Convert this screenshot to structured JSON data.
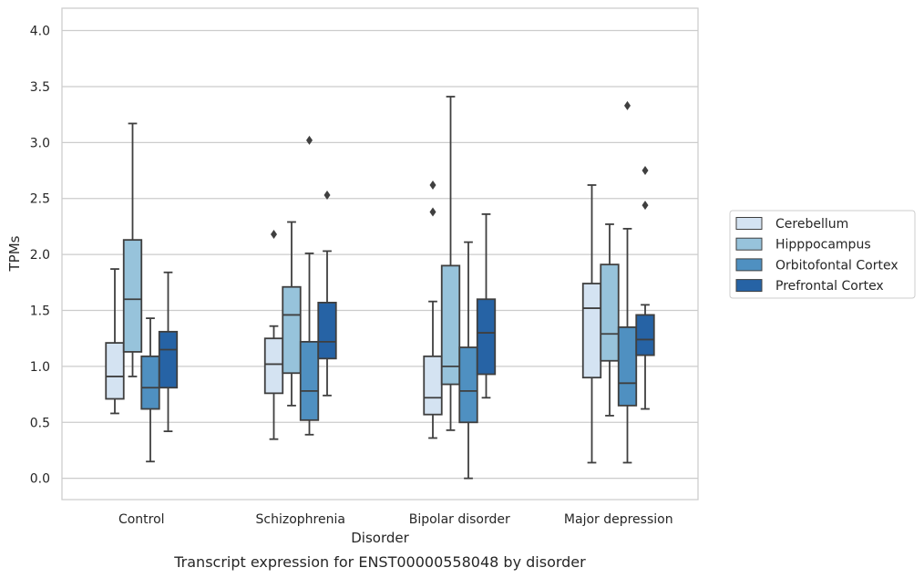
{
  "chart_data": {
    "type": "box",
    "caption": "Transcript expression for ENST00000558048 by disorder",
    "xlabel": "Disorder",
    "ylabel": "TPMs",
    "ylim": [
      -0.19,
      4.2
    ],
    "yticks": [
      "0.0",
      "0.5",
      "1.0",
      "1.5",
      "2.0",
      "2.5",
      "3.0",
      "3.5",
      "4.0"
    ],
    "grid": "horizontal",
    "legend_position": "right",
    "categories": [
      "Control",
      "Schizophrenia",
      "Bipolar disorder",
      "Major depression"
    ],
    "series": [
      {
        "name": "Cerebellum",
        "color": "#d4e3f2",
        "boxes": [
          {
            "whisker_low": 0.58,
            "q1": 0.71,
            "median": 0.91,
            "q3": 1.21,
            "whisker_high": 1.87,
            "outliers": []
          },
          {
            "whisker_low": 0.35,
            "q1": 0.76,
            "median": 1.02,
            "q3": 1.25,
            "whisker_high": 1.36,
            "outliers": [
              2.18
            ]
          },
          {
            "whisker_low": 0.36,
            "q1": 0.57,
            "median": 0.72,
            "q3": 1.09,
            "whisker_high": 1.58,
            "outliers": [
              2.38,
              2.62
            ]
          },
          {
            "whisker_low": 0.14,
            "q1": 0.9,
            "median": 1.52,
            "q3": 1.74,
            "whisker_high": 2.62,
            "outliers": []
          }
        ]
      },
      {
        "name": "Hipppocampus",
        "color": "#97c3db",
        "boxes": [
          {
            "whisker_low": 0.91,
            "q1": 1.13,
            "median": 1.6,
            "q3": 2.13,
            "whisker_high": 3.17,
            "outliers": []
          },
          {
            "whisker_low": 0.65,
            "q1": 0.94,
            "median": 1.46,
            "q3": 1.71,
            "whisker_high": 2.29,
            "outliers": []
          },
          {
            "whisker_low": 0.43,
            "q1": 0.84,
            "median": 1.0,
            "q3": 1.9,
            "whisker_high": 3.41,
            "outliers": []
          },
          {
            "whisker_low": 0.56,
            "q1": 1.05,
            "median": 1.29,
            "q3": 1.91,
            "whisker_high": 2.27,
            "outliers": []
          }
        ]
      },
      {
        "name": "Orbitofontal Cortex",
        "color": "#4f90c1",
        "boxes": [
          {
            "whisker_low": 0.15,
            "q1": 0.62,
            "median": 0.81,
            "q3": 1.09,
            "whisker_high": 1.43,
            "outliers": []
          },
          {
            "whisker_low": 0.39,
            "q1": 0.52,
            "median": 0.78,
            "q3": 1.22,
            "whisker_high": 2.01,
            "outliers": [
              3.02
            ]
          },
          {
            "whisker_low": 0.0,
            "q1": 0.5,
            "median": 0.78,
            "q3": 1.17,
            "whisker_high": 2.11,
            "outliers": []
          },
          {
            "whisker_low": 0.14,
            "q1": 0.65,
            "median": 0.85,
            "q3": 1.35,
            "whisker_high": 2.23,
            "outliers": [
              3.33
            ]
          }
        ]
      },
      {
        "name": "Prefrontal Cortex",
        "color": "#2663a5",
        "boxes": [
          {
            "whisker_low": 0.42,
            "q1": 0.81,
            "median": 1.15,
            "q3": 1.31,
            "whisker_high": 1.84,
            "outliers": []
          },
          {
            "whisker_low": 0.74,
            "q1": 1.07,
            "median": 1.22,
            "q3": 1.57,
            "whisker_high": 2.03,
            "outliers": [
              2.53
            ]
          },
          {
            "whisker_low": 0.72,
            "q1": 0.93,
            "median": 1.3,
            "q3": 1.6,
            "whisker_high": 2.36,
            "outliers": []
          },
          {
            "whisker_low": 0.62,
            "q1": 1.1,
            "median": 1.24,
            "q3": 1.46,
            "whisker_high": 1.55,
            "outliers": [
              2.44,
              2.75
            ]
          }
        ]
      }
    ]
  }
}
